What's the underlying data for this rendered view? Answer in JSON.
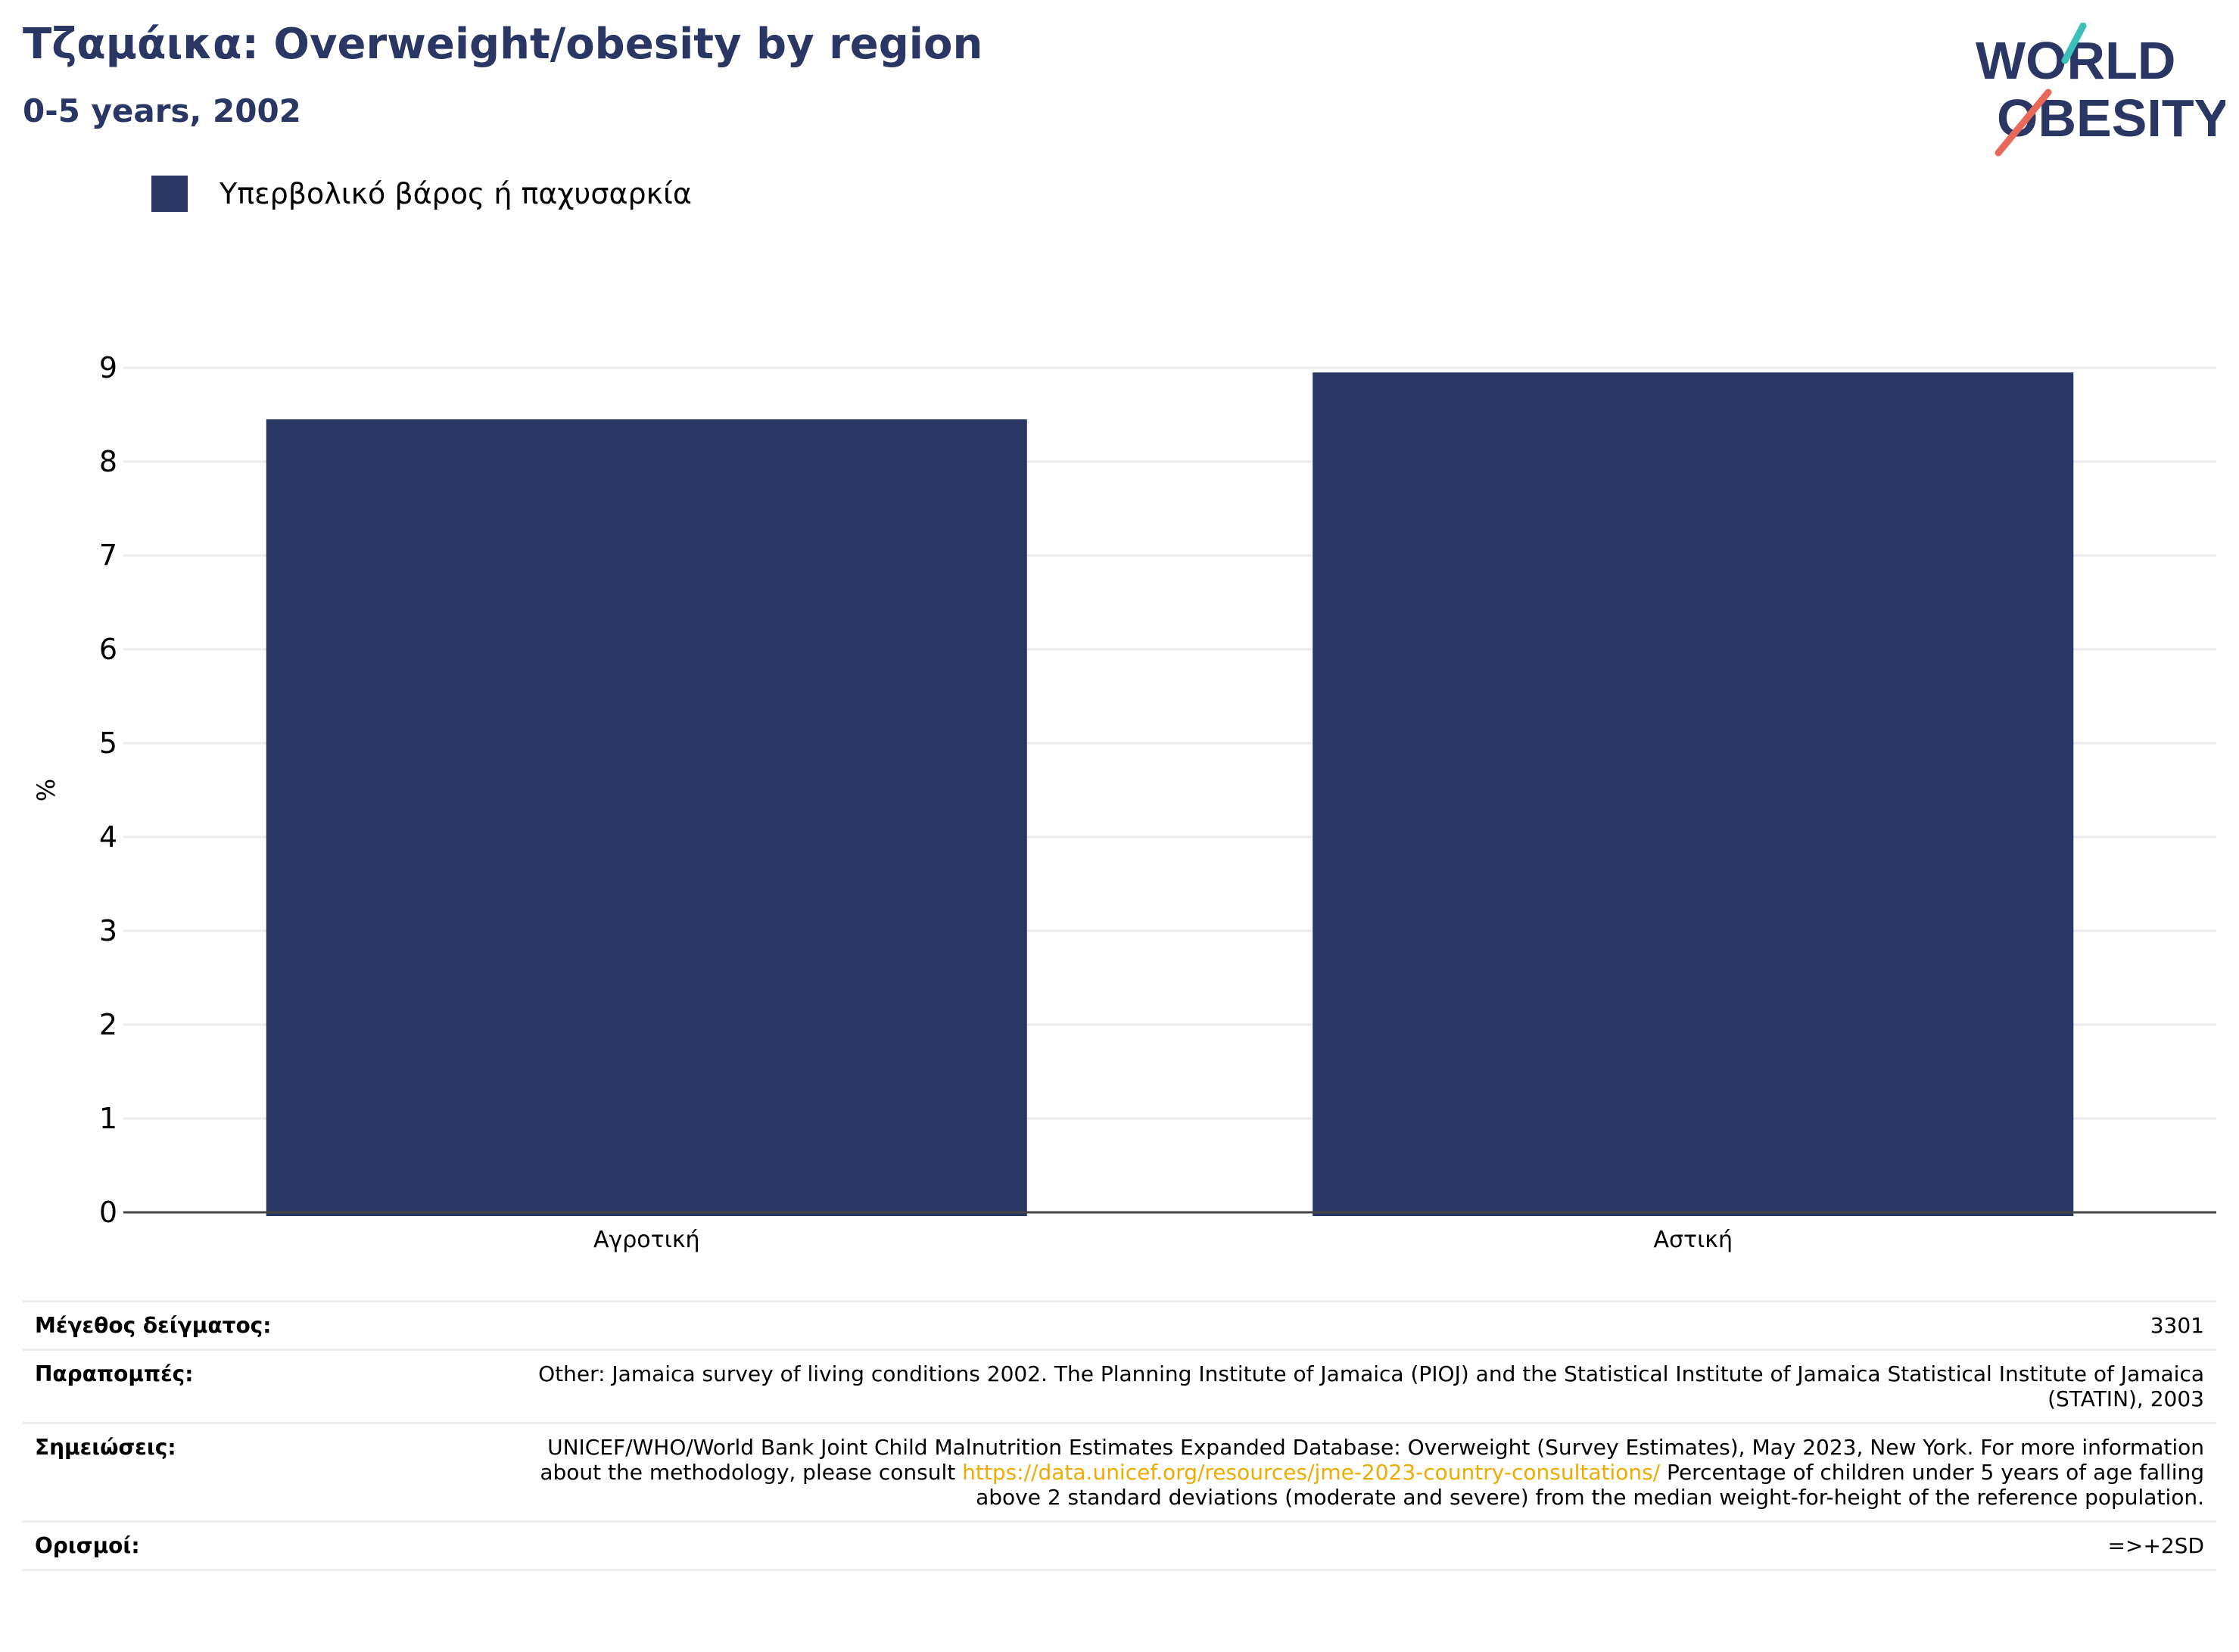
{
  "header": {
    "title": "Τζαμάικα: Overweight/obesity by region",
    "subtitle": "0-5 years, 2002"
  },
  "logo": {
    "line1": "WORLD",
    "line2": "OBESITY"
  },
  "colors": {
    "bar": "#2a3663",
    "title": "#2a3663",
    "link": "#f0ab00",
    "logo_teal": "#3bbfb9",
    "logo_coral": "#e8695a"
  },
  "chart_data": {
    "type": "bar",
    "categories": [
      "Αγροτική",
      "Αστική"
    ],
    "series": [
      {
        "name": "Υπερβολικό βάρος ή παχυσαρκία",
        "values": [
          8.45,
          8.95
        ]
      }
    ],
    "ylabel": "%",
    "ylim": [
      0,
      9
    ],
    "yticks": [
      0,
      1,
      2,
      3,
      4,
      5,
      6,
      7,
      8,
      9
    ],
    "grid": true,
    "legend": "top-left"
  },
  "meta": {
    "sample_label": "Μέγεθος δείγματος:",
    "sample_value": "3301",
    "refs_label": "Παραπομπές:",
    "refs_value": "Other: Jamaica survey of living conditions 2002. The Planning Institute of Jamaica (PIOJ) and the Statistical Institute of Jamaica Statistical Institute of Jamaica (STATIN), 2003",
    "notes_label": "Σημειώσεις:",
    "notes_before": "UNICEF/WHO/World Bank Joint Child Malnutrition Estimates Expanded Database: Overweight (Survey Estimates), May 2023, New York. For more information about the methodology, please consult ",
    "notes_link": "https://data.unicef.org/resources/jme-2023-country-consultations/",
    "notes_after": " Percentage of children under 5 years of age falling above 2 standard deviations (moderate and severe) from the median weight-for-height of the reference population.",
    "defs_label": "Ορισμοί:",
    "defs_value": "=>+2SD"
  }
}
